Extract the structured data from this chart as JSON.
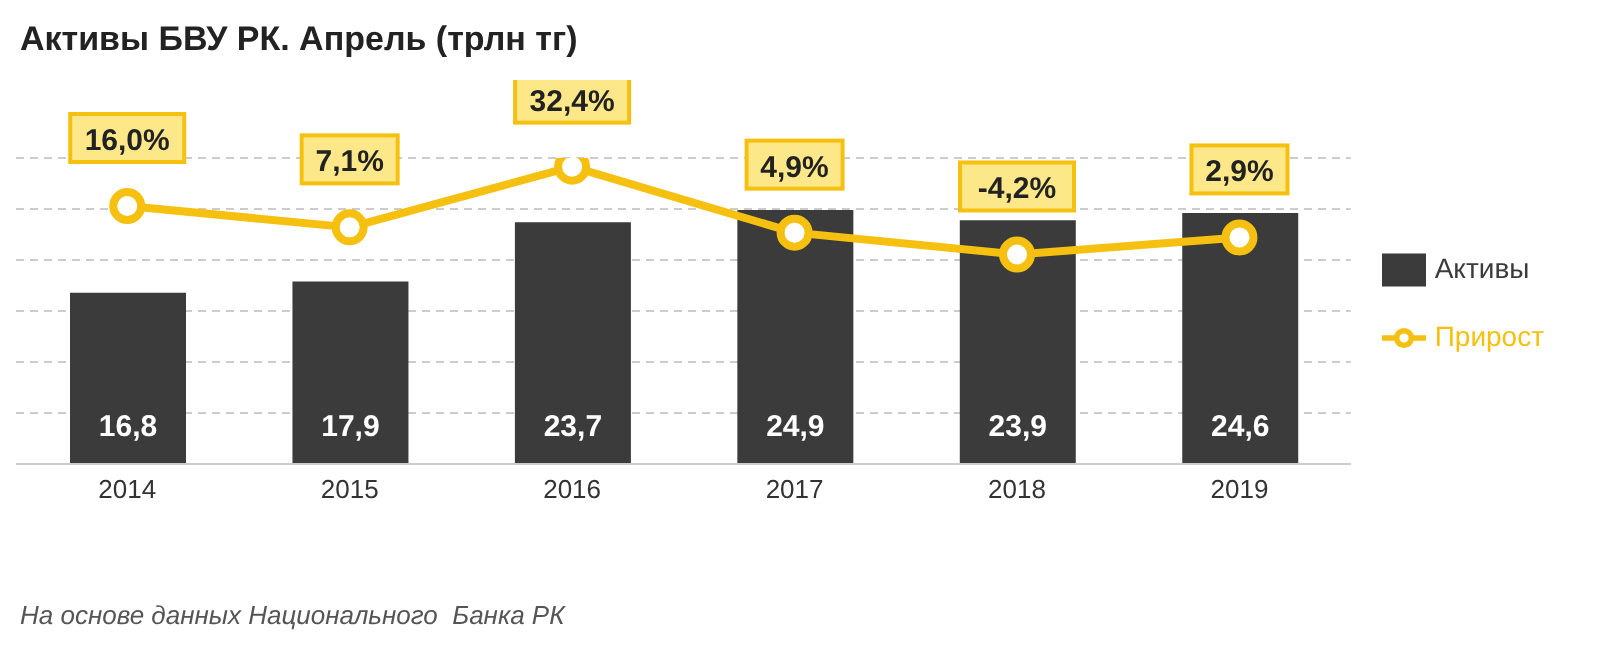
{
  "chart_data": {
    "type": "bar",
    "title": "Активы БВУ РК. Апрель (трлн тг)",
    "categories": [
      "2014",
      "2015",
      "2016",
      "2017",
      "2018",
      "2019"
    ],
    "series": [
      {
        "name": "Активы",
        "color": "#3b3b3b",
        "values": [
          16.8,
          17.9,
          23.7,
          24.9,
          23.9,
          24.6
        ],
        "value_labels": [
          "16,8",
          "17,9",
          "23,7",
          "24,9",
          "23,9",
          "24,6"
        ]
      },
      {
        "name": "Прирост",
        "type": "line",
        "axis": "y2",
        "color": "#f5c010",
        "marker": "circle",
        "values": [
          16.0,
          7.1,
          32.4,
          4.9,
          -4.2,
          2.9
        ],
        "value_labels": [
          "16,0%",
          "7,1%",
          "32,4%",
          "4,9%",
          "-4,2%",
          "2,9%"
        ]
      }
    ],
    "ylim": [
      0,
      30
    ],
    "yticks": [
      {
        "value": 0,
        "label": null
      },
      {
        "value": 5,
        "label": null
      },
      {
        "value": 10,
        "label": null
      },
      {
        "value": 15,
        "label": null
      },
      {
        "value": 20,
        "label": null
      },
      {
        "value": 25,
        "label": null
      },
      {
        "value": 30,
        "label": null
      }
    ],
    "grid": "y",
    "legend": "right",
    "tick_labels": "x",
    "annotations": [
      "На основе данных Национального  Банка РК"
    ]
  }
}
